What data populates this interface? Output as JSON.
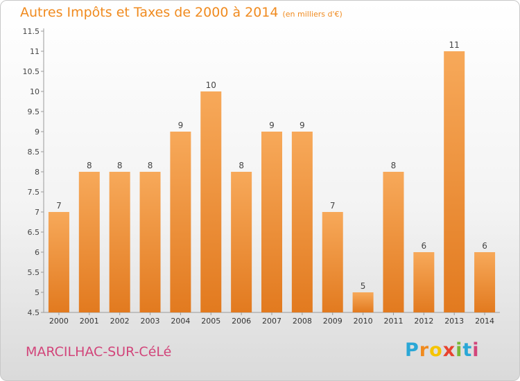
{
  "header": {
    "title": "Autres Impôts et Taxes de 2000 à 2014",
    "subtitle": "(en milliers d'€)"
  },
  "footer": {
    "commune": "MARCILHAC-SUR-CéLé",
    "logo_text": "Proxiti",
    "logo_colors": [
      "#2aa7d6",
      "#f08a1e",
      "#f5c400",
      "#e8432f",
      "#79b835",
      "#2aa7d6",
      "#d2457a"
    ]
  },
  "colors": {
    "bar_light": "#f7a95a",
    "bar_dark": "#e27a1f",
    "title": "#f08a1e",
    "commune": "#d2457a"
  },
  "chart_data": {
    "type": "bar",
    "title": "Autres Impôts et Taxes de 2000 à 2014",
    "subtitle": "(en milliers d'€)",
    "categories": [
      "2000",
      "2001",
      "2002",
      "2003",
      "2004",
      "2005",
      "2006",
      "2007",
      "2008",
      "2009",
      "2010",
      "2011",
      "2012",
      "2013",
      "2014"
    ],
    "values": [
      7,
      8,
      8,
      8,
      9,
      10,
      8,
      9,
      9,
      7,
      5,
      8,
      6,
      11,
      6
    ],
    "data_labels": [
      "7",
      "8",
      "8",
      "8",
      "9",
      "10",
      "8",
      "9",
      "9",
      "7",
      "5",
      "8",
      "6",
      "11",
      "6"
    ],
    "ylim": [
      4.5,
      11.5
    ],
    "yticks": [
      4.5,
      5,
      5.5,
      6,
      6.5,
      7,
      7.5,
      8,
      8.5,
      9,
      9.5,
      10,
      10.5,
      11,
      11.5
    ],
    "ytick_labels": [
      "4.5",
      "5",
      "5.5",
      "6",
      "6.5",
      "7",
      "7.5",
      "8",
      "8.5",
      "9",
      "9.5",
      "10",
      "10.5",
      "11",
      "11.5"
    ],
    "grid": false,
    "xlabel": "",
    "ylabel": ""
  }
}
